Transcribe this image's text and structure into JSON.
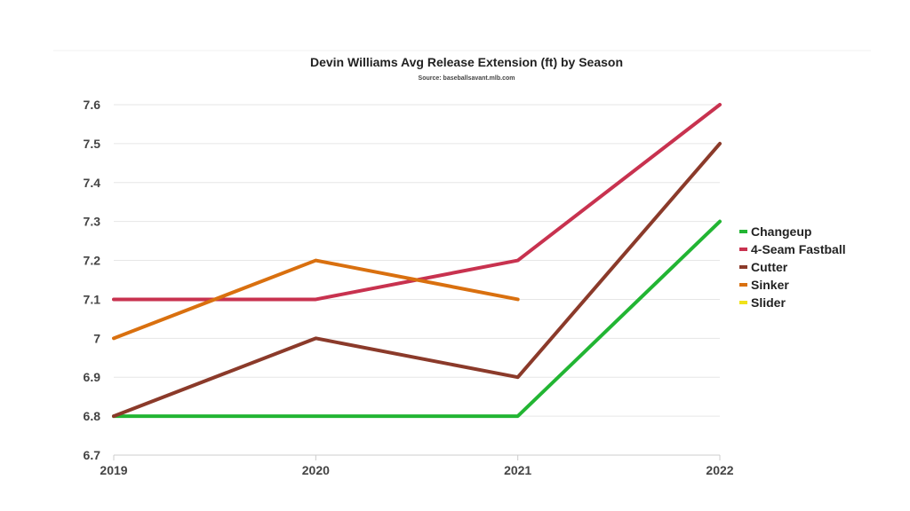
{
  "chart_data": {
    "type": "line",
    "title": "Devin Williams Avg Release Extension (ft) by Season",
    "subtitle": "Source: baseballsavant.mlb.com",
    "xlabel": "",
    "ylabel": "",
    "categories": [
      "2019",
      "2020",
      "2021",
      "2022"
    ],
    "ylim": [
      6.7,
      7.6
    ],
    "yticks": [
      "7.6",
      "7.5",
      "7.4",
      "7.3",
      "7.2",
      "7.1",
      "7",
      "6.9",
      "6.8",
      "6.7"
    ],
    "grid": true,
    "legend_position": "right",
    "series": [
      {
        "name": "Changeup",
        "color": "#22b533",
        "values": [
          6.8,
          6.8,
          6.8,
          7.3
        ]
      },
      {
        "name": "4-Seam Fastball",
        "color": "#c8324f",
        "values": [
          7.1,
          7.1,
          7.2,
          7.6
        ]
      },
      {
        "name": "Cutter",
        "color": "#8b3a2a",
        "values": [
          6.8,
          7.0,
          6.9,
          7.5
        ]
      },
      {
        "name": "Sinker",
        "color": "#d9700f",
        "values": [
          7.0,
          7.2,
          7.1,
          null
        ]
      },
      {
        "name": "Slider",
        "color": "#f0e21a",
        "values": [
          null,
          null,
          null,
          null
        ]
      }
    ]
  }
}
